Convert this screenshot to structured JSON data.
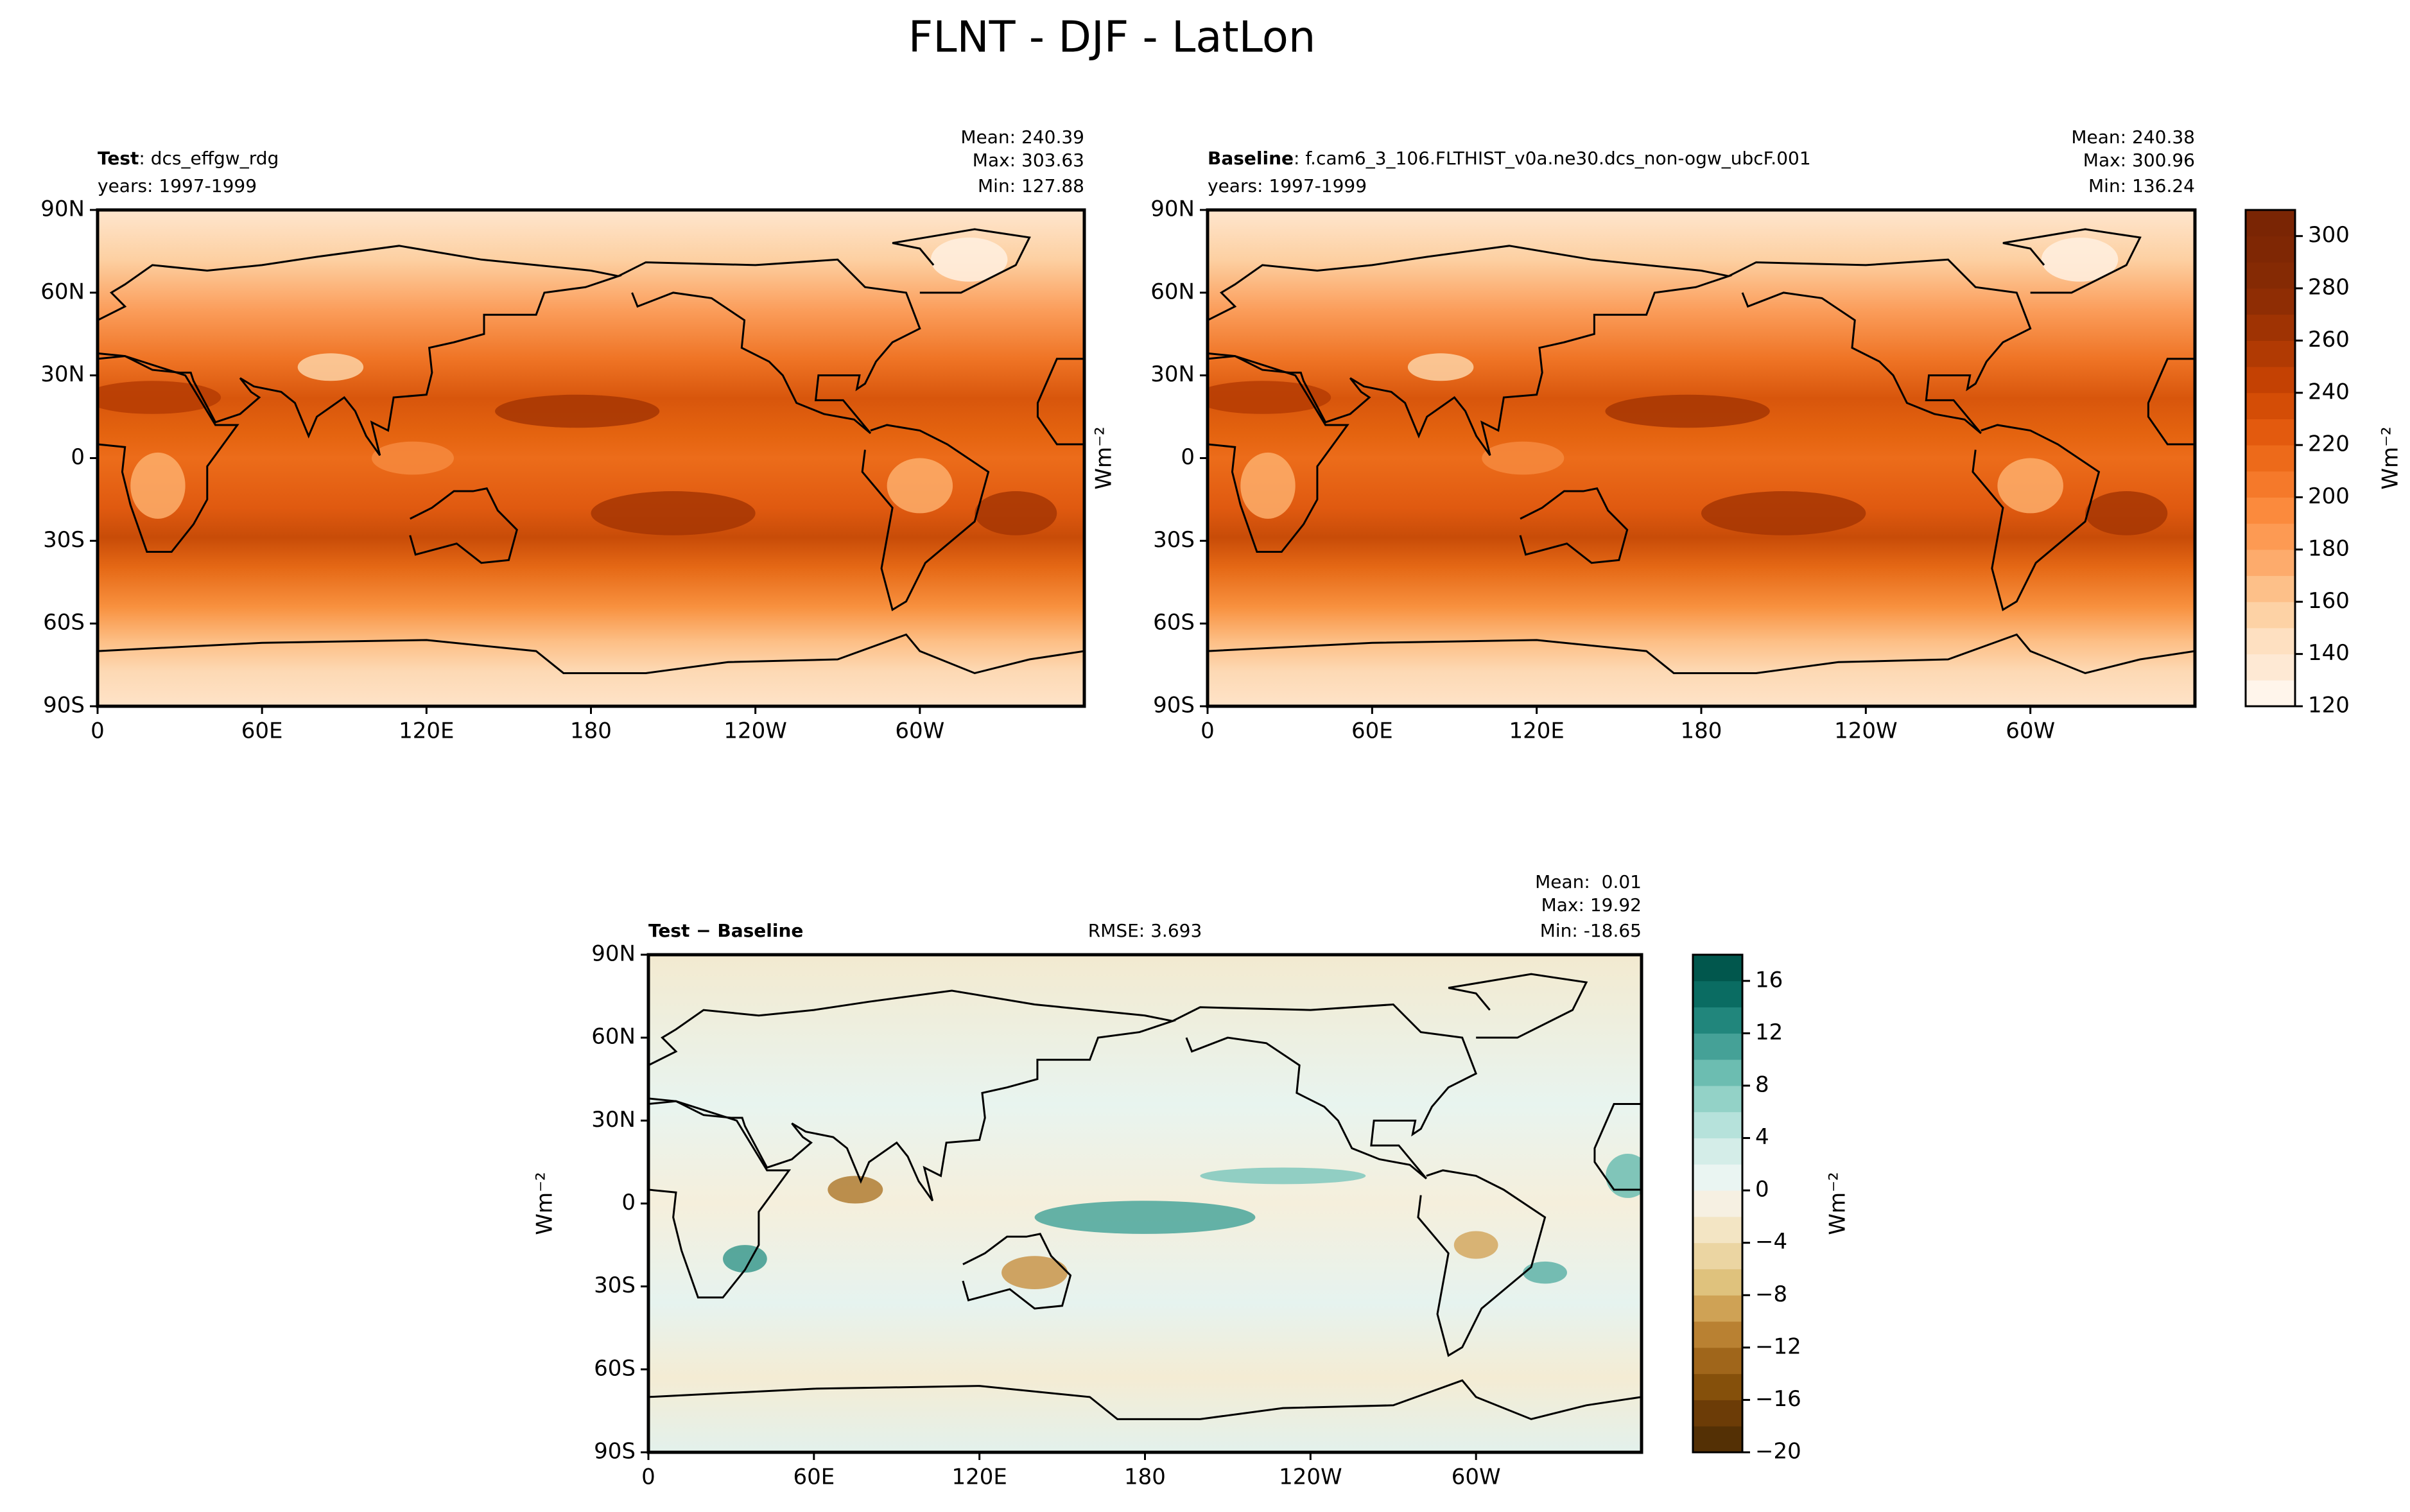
{
  "title": "FLNT - DJF - LatLon",
  "chart_data": [
    {
      "type": "map",
      "title": "Test",
      "subtitle": ": dcs_effgw_rdg",
      "years": "years: 1997-1999",
      "stats": [
        "Mean: 240.39",
        "Max: 303.63",
        "Min: 127.88"
      ],
      "xlim": [
        0,
        360
      ],
      "ylim": [
        -90,
        90
      ],
      "xticks": [
        0,
        {
          "value": 60,
          "label": "60E"
        },
        {
          "value": 120,
          "label": "120E"
        },
        180,
        {
          "value": 240,
          "label": "120W"
        },
        {
          "value": 300,
          "label": "60W"
        }
      ],
      "yticks": [
        {
          "value": -90,
          "label": "90S"
        },
        {
          "value": -60,
          "label": "60S"
        },
        {
          "value": -30,
          "label": "30S"
        },
        0,
        {
          "value": 30,
          "label": "30N"
        },
        {
          "value": 60,
          "label": "60N"
        },
        {
          "value": 90,
          "label": "90N"
        }
      ]
    },
    {
      "type": "map",
      "title": "Baseline",
      "subtitle": ": f.cam6_3_106.FLTHIST_v0a.ne30.dcs_non-ogw_ubcF.001",
      "years": "years: 1997-1999",
      "stats": [
        "Mean: 240.38",
        "Max: 300.96",
        "Min: 136.24"
      ],
      "ylabel": "Wm⁻²",
      "xlim": [
        0,
        360
      ],
      "ylim": [
        -90,
        90
      ],
      "xticks": [
        0,
        {
          "value": 60,
          "label": "60E"
        },
        {
          "value": 120,
          "label": "120E"
        },
        180,
        {
          "value": 240,
          "label": "120W"
        },
        {
          "value": 300,
          "label": "60W"
        }
      ],
      "yticks": [
        {
          "value": -90,
          "label": "90S"
        },
        {
          "value": -60,
          "label": "60S"
        },
        {
          "value": -30,
          "label": "30S"
        },
        0,
        {
          "value": 30,
          "label": "30N"
        },
        {
          "value": 60,
          "label": "60N"
        },
        {
          "value": 90,
          "label": "90N"
        }
      ],
      "colorbar": {
        "label": "Wm⁻²",
        "lim": [
          120,
          310
        ],
        "ticks": [
          120,
          140,
          160,
          180,
          200,
          220,
          240,
          260,
          280,
          300
        ],
        "colors": [
          "#fff5eb",
          "#fee9d4",
          "#fee0c1",
          "#fdd2a5",
          "#fdc089",
          "#fdab6c",
          "#fd9a53",
          "#fb8a3d",
          "#f5792a",
          "#ed6a1a",
          "#e35a0e",
          "#d44d06",
          "#c44103",
          "#b13a03",
          "#9f3303",
          "#8f2d04",
          "#852a04",
          "#7f2704",
          "#7a2504"
        ]
      }
    },
    {
      "type": "map",
      "title": "Test − Baseline",
      "rmse": "RMSE: 3.693",
      "stats": [
        "Mean:  0.01",
        "Max: 19.92",
        "Min: -18.65"
      ],
      "ylabel": "Wm⁻²",
      "xlim": [
        0,
        360
      ],
      "ylim": [
        -90,
        90
      ],
      "xticks": [
        0,
        {
          "value": 60,
          "label": "60E"
        },
        {
          "value": 120,
          "label": "120E"
        },
        180,
        {
          "value": 240,
          "label": "120W"
        },
        {
          "value": 300,
          "label": "60W"
        }
      ],
      "yticks": [
        {
          "value": -90,
          "label": "90S"
        },
        {
          "value": -60,
          "label": "60S"
        },
        {
          "value": -30,
          "label": "30S"
        },
        0,
        {
          "value": 30,
          "label": "30N"
        },
        {
          "value": 60,
          "label": "60N"
        },
        {
          "value": 90,
          "label": "90N"
        }
      ],
      "colorbar": {
        "label": "Wm⁻²",
        "lim": [
          -20,
          18
        ],
        "ticks": [
          {
            "value": -20,
            "label": "−20"
          },
          {
            "value": -16,
            "label": "−16"
          },
          {
            "value": -12,
            "label": "−12"
          },
          {
            "value": -8,
            "label": "−8"
          },
          {
            "value": -4,
            "label": "−4"
          },
          0,
          4,
          8,
          12,
          16
        ],
        "colors": [
          "#543005",
          "#6c3c07",
          "#85500b",
          "#a0661b",
          "#b98132",
          "#cfa255",
          "#dfc27d",
          "#ebd5a2",
          "#f3e5c4",
          "#f6f0e2",
          "#eaf5f2",
          "#d4ede8",
          "#b6e2db",
          "#93d2c7",
          "#6cbdb1",
          "#45a197",
          "#21867c",
          "#0a6c62",
          "#01574d"
        ]
      }
    }
  ]
}
